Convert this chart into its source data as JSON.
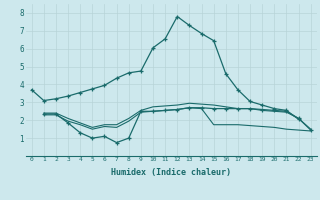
{
  "xlabel": "Humidex (Indice chaleur)",
  "background_color": "#cde8ed",
  "grid_color": "#b8d4d8",
  "line_color": "#1a6b6b",
  "xlim": [
    -0.5,
    23.5
  ],
  "ylim": [
    0,
    8.5
  ],
  "xticks": [
    0,
    1,
    2,
    3,
    4,
    5,
    6,
    7,
    8,
    9,
    10,
    11,
    12,
    13,
    14,
    15,
    16,
    17,
    18,
    19,
    20,
    21,
    22,
    23
  ],
  "yticks": [
    1,
    2,
    3,
    4,
    5,
    6,
    7,
    8
  ],
  "line1_x": [
    0,
    1,
    2,
    3,
    4,
    5,
    6,
    7,
    8,
    9,
    10,
    11,
    12,
    13,
    14,
    15,
    16,
    17,
    18,
    19,
    20,
    21,
    22
  ],
  "line1_y": [
    3.7,
    3.1,
    3.2,
    3.35,
    3.55,
    3.75,
    3.95,
    4.35,
    4.65,
    4.75,
    6.05,
    6.55,
    7.8,
    7.3,
    6.85,
    6.45,
    4.6,
    3.7,
    3.05,
    2.85,
    2.65,
    2.55,
    2.05
  ],
  "line2_x": [
    1,
    2,
    3,
    4,
    5,
    6,
    7,
    8,
    9,
    10,
    11,
    12,
    13,
    14,
    15,
    16,
    17,
    18,
    19,
    20,
    21,
    22,
    23
  ],
  "line2_y": [
    2.35,
    2.35,
    1.85,
    1.3,
    1.0,
    1.1,
    0.75,
    1.0,
    2.5,
    2.5,
    2.55,
    2.6,
    2.7,
    2.7,
    2.65,
    2.65,
    2.65,
    2.65,
    2.6,
    2.55,
    2.5,
    2.1,
    1.45
  ],
  "line3_x": [
    1,
    2,
    3,
    4,
    5,
    6,
    7,
    8,
    9,
    10,
    11,
    12,
    13,
    14,
    15,
    16,
    17,
    18,
    19,
    20,
    21,
    22,
    23
  ],
  "line3_y": [
    2.4,
    2.4,
    2.1,
    1.85,
    1.6,
    1.75,
    1.75,
    2.1,
    2.55,
    2.75,
    2.8,
    2.85,
    2.95,
    2.9,
    2.85,
    2.75,
    2.65,
    2.65,
    2.55,
    2.5,
    2.45,
    2.1,
    1.5
  ],
  "line4_x": [
    1,
    2,
    3,
    4,
    5,
    6,
    7,
    8,
    9,
    10,
    11,
    12,
    13,
    14,
    15,
    16,
    17,
    18,
    19,
    20,
    21,
    22,
    23
  ],
  "line4_y": [
    2.3,
    2.3,
    1.95,
    1.75,
    1.5,
    1.65,
    1.6,
    1.95,
    2.45,
    2.5,
    2.55,
    2.6,
    2.7,
    2.65,
    1.75,
    1.75,
    1.75,
    1.7,
    1.65,
    1.6,
    1.5,
    1.45,
    1.4
  ]
}
